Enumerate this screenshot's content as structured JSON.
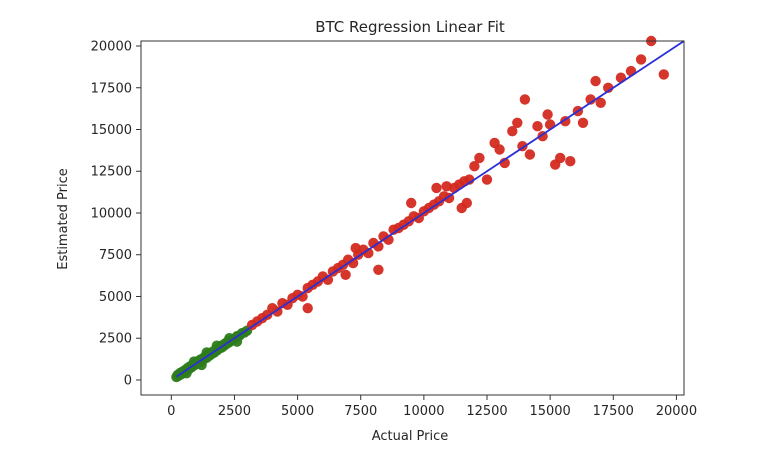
{
  "chart_data": {
    "type": "scatter",
    "title": "BTC Regression Linear Fit",
    "xlabel": "Actual Price",
    "ylabel": "Estimated Price",
    "xlim": [
      -1200,
      20300
    ],
    "ylim": [
      -900,
      20300
    ],
    "xticks": [
      0,
      2500,
      5000,
      7500,
      10000,
      12500,
      15000,
      17500,
      20000
    ],
    "yticks": [
      0,
      2500,
      5000,
      7500,
      10000,
      12500,
      15000,
      17500,
      20000
    ],
    "grid": false,
    "colors": {
      "low_points": "#2e7d1e",
      "high_points": "#d32a1f",
      "fit_line": "#2b2fd6",
      "axes": "#333333"
    },
    "fit_line": {
      "x": [
        200,
        20300
      ],
      "y": [
        200,
        20300
      ]
    },
    "series": [
      {
        "color": "#2e7d1e",
        "points": [
          [
            200,
            180
          ],
          [
            250,
            300
          ],
          [
            300,
            260
          ],
          [
            350,
            420
          ],
          [
            400,
            350
          ],
          [
            450,
            500
          ],
          [
            500,
            470
          ],
          [
            550,
            600
          ],
          [
            600,
            560
          ],
          [
            650,
            720
          ],
          [
            700,
            650
          ],
          [
            750,
            820
          ],
          [
            800,
            760
          ],
          [
            850,
            900
          ],
          [
            900,
            870
          ],
          [
            950,
            1000
          ],
          [
            1000,
            950
          ],
          [
            1050,
            1120
          ],
          [
            1100,
            1050
          ],
          [
            1150,
            1220
          ],
          [
            1200,
            1150
          ],
          [
            1250,
            1300
          ],
          [
            1300,
            1260
          ],
          [
            1350,
            1420
          ],
          [
            1400,
            1330
          ],
          [
            1450,
            1500
          ],
          [
            1500,
            1450
          ],
          [
            1550,
            1620
          ],
          [
            1600,
            1560
          ],
          [
            1650,
            1700
          ],
          [
            1700,
            1640
          ],
          [
            1750,
            1800
          ],
          [
            1800,
            1760
          ],
          [
            1850,
            1900
          ],
          [
            1900,
            1880
          ],
          [
            1950,
            2020
          ],
          [
            2000,
            1950
          ],
          [
            2050,
            2100
          ],
          [
            2100,
            2060
          ],
          [
            2150,
            2200
          ],
          [
            2200,
            2170
          ],
          [
            2250,
            2330
          ],
          [
            2300,
            2260
          ],
          [
            2400,
            2400
          ],
          [
            2500,
            2470
          ],
          [
            2600,
            2620
          ],
          [
            2700,
            2650
          ],
          [
            2800,
            2800
          ],
          [
            2900,
            2850
          ],
          [
            3000,
            2950
          ],
          [
            1200,
            900
          ],
          [
            1800,
            2050
          ],
          [
            2300,
            2500
          ],
          [
            900,
            1100
          ],
          [
            600,
            400
          ],
          [
            1400,
            1650
          ],
          [
            2600,
            2300
          ]
        ]
      },
      {
        "color": "#d32a1f",
        "points": [
          [
            3200,
            3300
          ],
          [
            3400,
            3500
          ],
          [
            3600,
            3700
          ],
          [
            3800,
            3900
          ],
          [
            4000,
            4300
          ],
          [
            4200,
            4100
          ],
          [
            4400,
            4600
          ],
          [
            4600,
            4500
          ],
          [
            4800,
            4900
          ],
          [
            5000,
            5100
          ],
          [
            5200,
            5000
          ],
          [
            5400,
            5500
          ],
          [
            5600,
            5700
          ],
          [
            5800,
            5900
          ],
          [
            6000,
            6200
          ],
          [
            6200,
            6000
          ],
          [
            6400,
            6500
          ],
          [
            6600,
            6700
          ],
          [
            6800,
            6900
          ],
          [
            7000,
            7200
          ],
          [
            7200,
            7000
          ],
          [
            7400,
            7500
          ],
          [
            7600,
            7800
          ],
          [
            7800,
            7600
          ],
          [
            8000,
            8200
          ],
          [
            8200,
            8000
          ],
          [
            8400,
            8600
          ],
          [
            8600,
            8400
          ],
          [
            8800,
            9000
          ],
          [
            9000,
            9100
          ],
          [
            9200,
            9300
          ],
          [
            9400,
            9500
          ],
          [
            9600,
            9800
          ],
          [
            9800,
            9700
          ],
          [
            10000,
            10100
          ],
          [
            10200,
            10300
          ],
          [
            10400,
            10500
          ],
          [
            10600,
            10700
          ],
          [
            10800,
            11000
          ],
          [
            11000,
            10900
          ],
          [
            11200,
            11500
          ],
          [
            11400,
            11700
          ],
          [
            11600,
            11900
          ],
          [
            11800,
            12000
          ],
          [
            10500,
            11500
          ],
          [
            11500,
            10300
          ],
          [
            8200,
            6600
          ],
          [
            5400,
            4300
          ],
          [
            9500,
            10600
          ],
          [
            7300,
            7900
          ],
          [
            6900,
            6300
          ],
          [
            10900,
            11600
          ],
          [
            11700,
            10600
          ],
          [
            12200,
            13300
          ],
          [
            12500,
            12000
          ],
          [
            12800,
            14200
          ],
          [
            13200,
            13000
          ],
          [
            13500,
            14900
          ],
          [
            13700,
            15400
          ],
          [
            13900,
            14000
          ],
          [
            14000,
            16800
          ],
          [
            14200,
            13500
          ],
          [
            14500,
            15200
          ],
          [
            14700,
            14600
          ],
          [
            15000,
            15300
          ],
          [
            15200,
            12900
          ],
          [
            15400,
            13300
          ],
          [
            15600,
            15500
          ],
          [
            15800,
            13100
          ],
          [
            16100,
            16100
          ],
          [
            16300,
            15400
          ],
          [
            16600,
            16800
          ],
          [
            16800,
            17900
          ],
          [
            17000,
            16600
          ],
          [
            17300,
            17500
          ],
          [
            18200,
            18500
          ],
          [
            18600,
            19200
          ],
          [
            19000,
            20300
          ],
          [
            19500,
            18300
          ],
          [
            17800,
            18100
          ],
          [
            12000,
            12800
          ],
          [
            13000,
            13800
          ],
          [
            14900,
            15900
          ]
        ]
      }
    ]
  }
}
